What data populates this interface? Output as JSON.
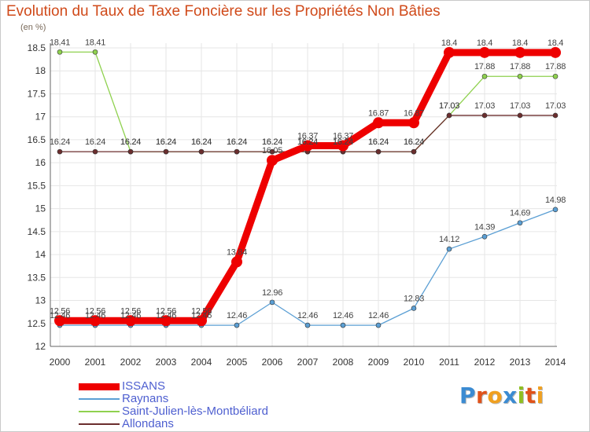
{
  "title": "Evolution du Taux de Taxe Foncière sur les Propriétés Non Bâties",
  "unit": "(en %)",
  "logo": {
    "text": "Proxiti",
    "colors": [
      "#3b8bd2",
      "#e0521a",
      "#f0a020",
      "#3b8bd2",
      "#8fbf22",
      "#e0521a",
      "#f0a020"
    ]
  },
  "chart_data": {
    "type": "line",
    "title": "Evolution du Taux de Taxe Foncière sur les Propriétés Non Bâties",
    "ylabel": "(en %)",
    "xlabel": "",
    "ylim": [
      12,
      18.5
    ],
    "yticks": [
      "12",
      "12.5",
      "13",
      "13.5",
      "14",
      "14.5",
      "15",
      "15.5",
      "16",
      "16.5",
      "17",
      "17.5",
      "18",
      "18.5"
    ],
    "x": [
      "2000",
      "2001",
      "2002",
      "2003",
      "2004",
      "2005",
      "2006",
      "2007",
      "2008",
      "2009",
      "2010",
      "2011",
      "2012",
      "2013",
      "2014"
    ],
    "grid": true,
    "legend_position": "bottom-left",
    "series": [
      {
        "name": "ISSANS",
        "color": "#ee0000",
        "values": [
          12.56,
          12.56,
          12.56,
          12.56,
          12.56,
          13.84,
          16.05,
          16.37,
          16.37,
          16.87,
          16.87,
          18.4,
          18.4,
          18.4,
          18.4
        ],
        "labels": [
          "12.56",
          "12.56",
          "12.56",
          "12.56",
          "12.56",
          "13.84",
          "16.05",
          "16.37",
          "16.37",
          "16.87",
          "16.87",
          "18.4",
          "18.4",
          "18.4",
          "18.4"
        ]
      },
      {
        "name": "Raynans",
        "color": "#5b9fd4",
        "values": [
          12.46,
          12.46,
          12.46,
          12.46,
          12.46,
          12.46,
          12.96,
          12.46,
          12.46,
          12.46,
          12.83,
          14.12,
          14.39,
          14.69,
          14.98
        ],
        "labels": [
          "12.46",
          "12.46",
          "12.46",
          "12.46",
          "12.46",
          "12.46",
          "12.96",
          "12.46",
          "12.46",
          "12.46",
          "12.83",
          "14.12",
          "14.39",
          "14.69",
          "14.98"
        ]
      },
      {
        "name": "Saint-Julien-lès-Montbéliard",
        "color": "#8fd14f",
        "values": [
          18.41,
          18.41,
          16.24,
          16.24,
          16.24,
          16.24,
          16.24,
          16.24,
          16.24,
          16.24,
          16.24,
          17.03,
          17.88,
          17.88,
          17.88
        ],
        "labels": [
          "18.41",
          "18.41",
          "16.24",
          "16.24",
          "16.24",
          "16.24",
          "16.24",
          "16.24",
          "16.24",
          "16.24",
          "16.24",
          "17.03",
          "17.88",
          "17.88",
          "17.88"
        ]
      },
      {
        "name": "Allondans",
        "color": "#6b2e2e",
        "values": [
          16.24,
          16.24,
          16.24,
          16.24,
          16.24,
          16.24,
          16.24,
          16.24,
          16.24,
          16.24,
          16.24,
          17.03,
          17.03,
          17.03,
          17.03
        ],
        "labels": [
          "16.24",
          "16.24",
          "16.24",
          "16.24",
          "16.24",
          "16.24",
          "16.24",
          "16.24",
          "16.24",
          "16.24",
          "16.24",
          "17.03",
          "17.03",
          "17.03",
          "17.03"
        ]
      }
    ]
  }
}
